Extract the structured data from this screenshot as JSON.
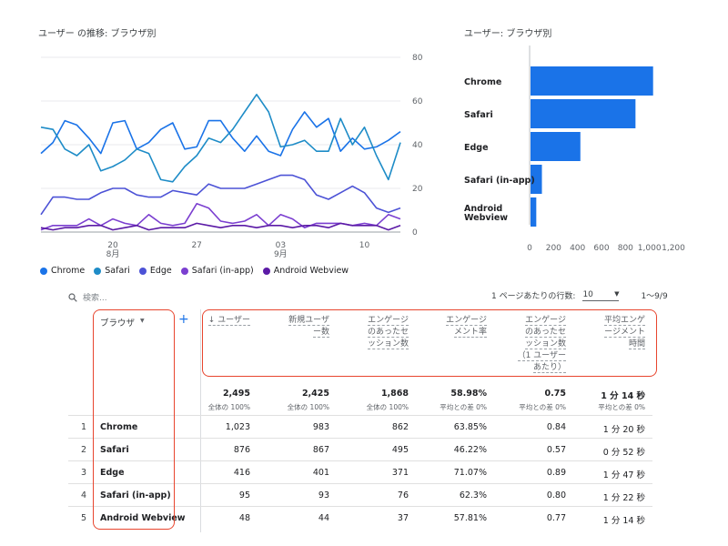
{
  "line_chart": {
    "title": "ユーザー の推移: ブラウザ別",
    "y_ticks": [
      "80",
      "60",
      "40",
      "20",
      "0"
    ],
    "x_ticks": [
      {
        "day": "20",
        "month": "8月"
      },
      {
        "day": "27",
        "month": ""
      },
      {
        "day": "03",
        "month": "9月"
      },
      {
        "day": "10",
        "month": ""
      }
    ],
    "legend": [
      {
        "name": "Chrome",
        "color": "#1a73e8"
      },
      {
        "name": "Safari",
        "color": "#1e8cc7"
      },
      {
        "name": "Edge",
        "color": "#4c52d6"
      },
      {
        "name": "Safari (in-app)",
        "color": "#7b3fd0"
      },
      {
        "name": "Android Webview",
        "color": "#5b1aa6"
      }
    ]
  },
  "bar_chart": {
    "title": "ユーザー: ブラウザ別",
    "x_ticks": [
      "0",
      "200",
      "400",
      "600",
      "800",
      "1,000",
      "1,200"
    ]
  },
  "chart_data": [
    {
      "type": "line",
      "title": "ユーザー の推移: ブラウザ別",
      "x": [
        "08-14",
        "08-15",
        "08-16",
        "08-17",
        "08-18",
        "08-19",
        "08-20",
        "08-21",
        "08-22",
        "08-23",
        "08-24",
        "08-25",
        "08-26",
        "08-27",
        "08-28",
        "08-29",
        "08-30",
        "08-31",
        "09-01",
        "09-02",
        "09-03",
        "09-04",
        "09-05",
        "09-06",
        "09-07",
        "09-08",
        "09-09",
        "09-10",
        "09-11",
        "09-12",
        "09-13"
      ],
      "xtick_labels": [
        "20 8月",
        "27",
        "03 9月",
        "10"
      ],
      "ylim": [
        0,
        80
      ],
      "series": [
        {
          "name": "Chrome",
          "color": "#1a73e8",
          "values": [
            36,
            41,
            51,
            49,
            43,
            36,
            50,
            51,
            38,
            41,
            47,
            50,
            38,
            39,
            51,
            51,
            43,
            37,
            44,
            37,
            35,
            47,
            55,
            48,
            52,
            37,
            43,
            38,
            39,
            42,
            46
          ]
        },
        {
          "name": "Safari",
          "color": "#1e8cc7",
          "values": [
            48,
            47,
            38,
            35,
            40,
            28,
            30,
            33,
            38,
            36,
            24,
            23,
            30,
            35,
            43,
            41,
            47,
            55,
            63,
            55,
            39,
            40,
            42,
            37,
            37,
            52,
            40,
            48,
            35,
            24,
            41
          ]
        },
        {
          "name": "Edge",
          "color": "#4c52d6",
          "values": [
            8,
            16,
            16,
            15,
            15,
            18,
            20,
            20,
            17,
            16,
            16,
            19,
            18,
            17,
            22,
            20,
            20,
            20,
            22,
            24,
            26,
            26,
            24,
            17,
            15,
            18,
            21,
            18,
            11,
            9,
            11
          ]
        },
        {
          "name": "Safari (in-app)",
          "color": "#7b3fd0",
          "values": [
            1,
            3,
            3,
            3,
            6,
            3,
            6,
            4,
            3,
            8,
            4,
            3,
            4,
            13,
            11,
            5,
            4,
            5,
            8,
            3,
            8,
            6,
            2,
            4,
            4,
            4,
            3,
            4,
            3,
            8,
            6
          ]
        },
        {
          "name": "Android Webview",
          "color": "#5b1aa6",
          "values": [
            2,
            1,
            2,
            2,
            3,
            3,
            1,
            2,
            3,
            1,
            2,
            2,
            2,
            4,
            3,
            2,
            3,
            3,
            2,
            3,
            3,
            2,
            3,
            3,
            2,
            4,
            3,
            3,
            3,
            1,
            3
          ]
        }
      ]
    },
    {
      "type": "bar",
      "title": "ユーザー: ブラウザ別",
      "orientation": "horizontal",
      "categories": [
        "Chrome",
        "Safari",
        "Edge",
        "Safari (in-app)",
        "Android Webview"
      ],
      "values": [
        1023,
        876,
        416,
        95,
        48
      ],
      "xlim": [
        0,
        1200
      ],
      "color": "#1a73e8"
    }
  ],
  "toolbar": {
    "search_placeholder": "検索...",
    "rows_per_page_label": "1 ページあたりの行数:",
    "rows_per_page_value": "10",
    "range": "1〜9/9"
  },
  "table": {
    "dim_header": "ブラウザ",
    "add_symbol": "+",
    "metric_headers": [
      {
        "lines": [
          "↓ ユーザー"
        ]
      },
      {
        "lines": [
          "新規ユーザ",
          "ー数"
        ]
      },
      {
        "lines": [
          "エンゲージ",
          "のあったセ",
          "ッション数"
        ]
      },
      {
        "lines": [
          "エンゲージ",
          "メント率"
        ]
      },
      {
        "lines": [
          "エンゲージ",
          "のあったセ",
          "ッション数",
          "（1 ユーザー",
          "あたり）"
        ]
      },
      {
        "lines": [
          "平均エンゲ",
          "ージメント",
          "時間"
        ]
      }
    ],
    "totals": [
      {
        "value": "2,495",
        "sub": "全体の 100%"
      },
      {
        "value": "2,425",
        "sub": "全体の 100%"
      },
      {
        "value": "1,868",
        "sub": "全体の 100%"
      },
      {
        "value": "58.98%",
        "sub": "平均との差 0%"
      },
      {
        "value": "0.75",
        "sub": "平均との差 0%"
      },
      {
        "value": "1 分 14 秒",
        "sub": "平均との差 0%"
      }
    ],
    "rows": [
      {
        "idx": "1",
        "name": "Chrome",
        "vals": [
          "1,023",
          "983",
          "862",
          "63.85%",
          "0.84",
          "1 分 20 秒"
        ]
      },
      {
        "idx": "2",
        "name": "Safari",
        "vals": [
          "876",
          "867",
          "495",
          "46.22%",
          "0.57",
          "0 分 52 秒"
        ]
      },
      {
        "idx": "3",
        "name": "Edge",
        "vals": [
          "416",
          "401",
          "371",
          "71.07%",
          "0.89",
          "1 分 47 秒"
        ]
      },
      {
        "idx": "4",
        "name": "Safari (in-app)",
        "vals": [
          "95",
          "93",
          "76",
          "62.3%",
          "0.80",
          "1 分 22 秒"
        ]
      },
      {
        "idx": "5",
        "name": "Android Webview",
        "vals": [
          "48",
          "44",
          "37",
          "57.81%",
          "0.77",
          "1 分 14 秒"
        ]
      }
    ]
  }
}
